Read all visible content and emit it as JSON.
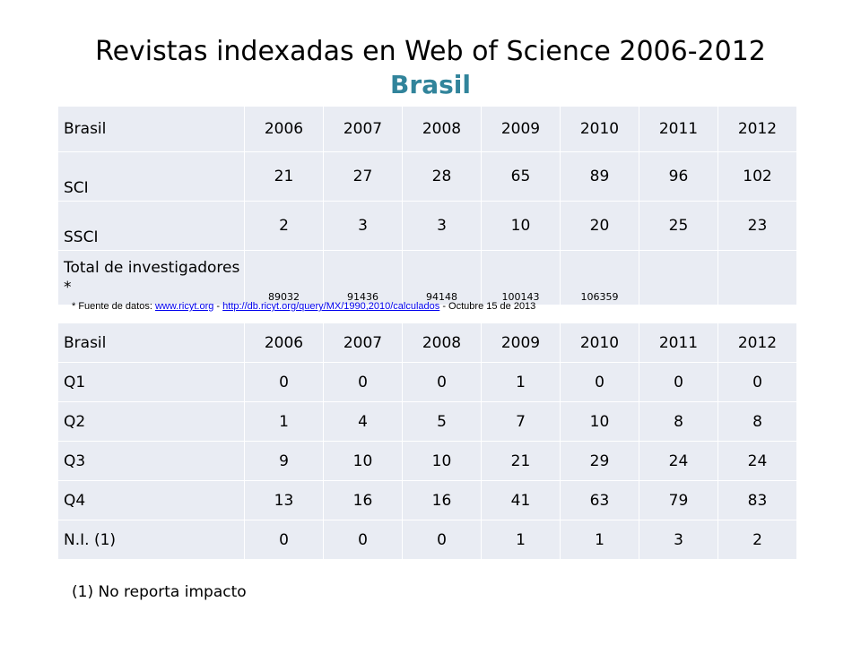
{
  "title": "Revistas indexadas en Web of Science 2006-2012",
  "subtitle": "Brasil",
  "table1": {
    "header": [
      "Brasil",
      "2006",
      "2007",
      "2008",
      "2009",
      "2010",
      "2011",
      "2012"
    ],
    "rows": [
      {
        "label": "SCI",
        "values": [
          "21",
          "27",
          "28",
          "65",
          "89",
          "96",
          "102"
        ]
      },
      {
        "label": "SSCI",
        "values": [
          "2",
          "3",
          "3",
          "10",
          "20",
          "25",
          "23"
        ]
      },
      {
        "label": "Total de investigadores *",
        "values": [
          "89032",
          "91436",
          "94148",
          "100143",
          "106359",
          "",
          ""
        ]
      }
    ]
  },
  "source_note": {
    "prefix": "* Fuente de datos: ",
    "link1": "www.ricyt.org",
    "sep": " - ",
    "link2": "http://db.ricyt.org/query/MX/1990,2010/calculados",
    "suffix": " - Octubre 15 de 2013"
  },
  "table2": {
    "header": [
      "Brasil",
      "2006",
      "2007",
      "2008",
      "2009",
      "2010",
      "2011",
      "2012"
    ],
    "rows": [
      {
        "label": "Q1",
        "values": [
          "0",
          "0",
          "0",
          "1",
          "0",
          "0",
          "0"
        ]
      },
      {
        "label": "Q2",
        "values": [
          "1",
          "4",
          "5",
          "7",
          "10",
          "8",
          "8"
        ]
      },
      {
        "label": "Q3",
        "values": [
          "9",
          "10",
          "10",
          "21",
          "29",
          "24",
          "24"
        ]
      },
      {
        "label": "Q4",
        "values": [
          "13",
          "16",
          "16",
          "41",
          "63",
          "79",
          "83"
        ]
      },
      {
        "label": "N.I. (1)",
        "values": [
          "0",
          "0",
          "0",
          "1",
          "1",
          "3",
          "2"
        ]
      }
    ]
  },
  "footnote": "(1) No reporta impacto",
  "colors": {
    "subtitle": "#31849b",
    "cell_bg": "#e9ecf3",
    "link": "#0000ee"
  }
}
